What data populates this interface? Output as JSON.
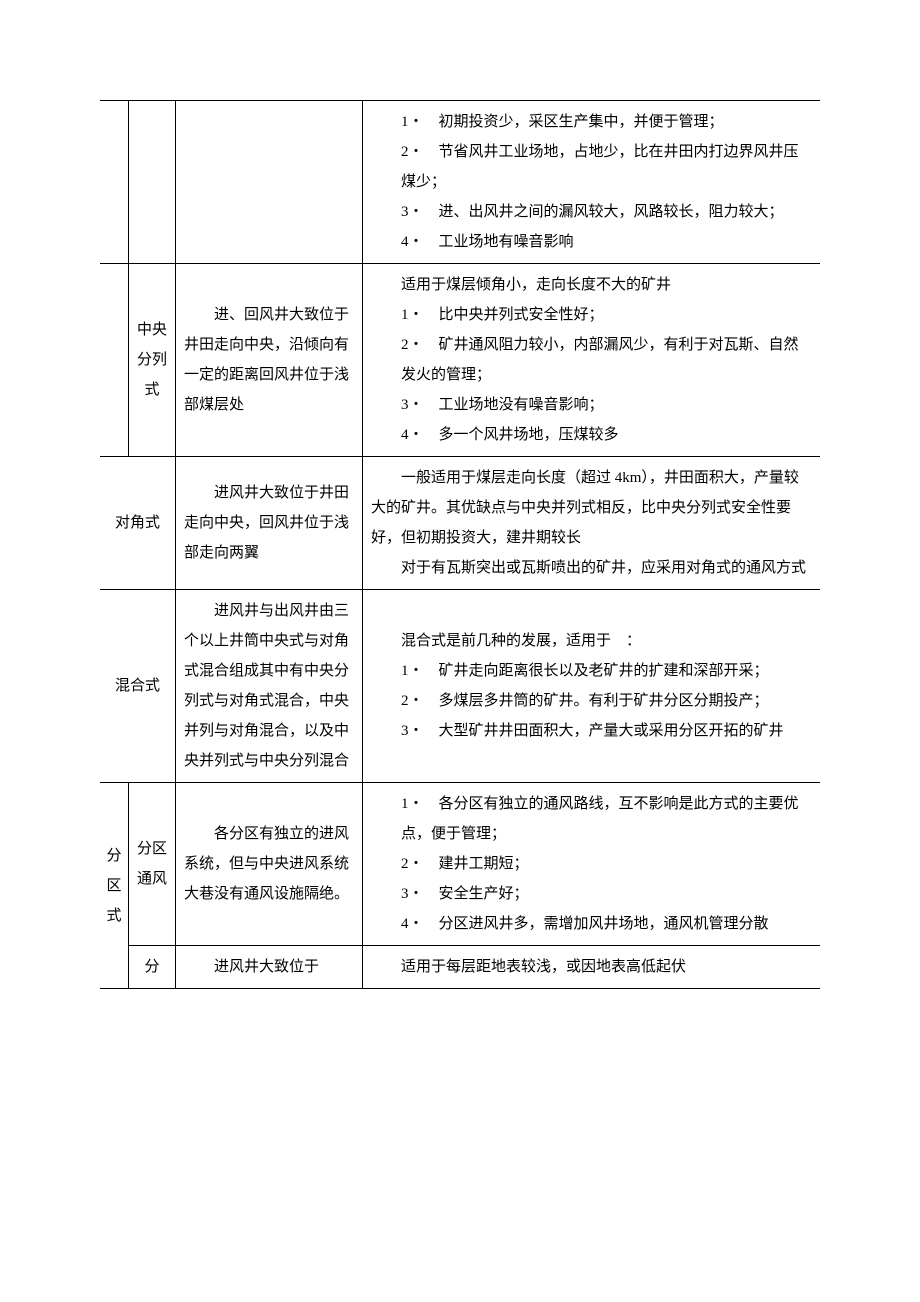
{
  "row1_feat_l1": "1・　初期投资少，采区生产集中，并便于管理；",
  "row1_feat_l2": "2・　节省风井工业场地，占地少，比在井田内打边界风井压煤少；",
  "row1_feat_l3": "3・　进、出风井之间的漏风较大，风路较长，阻力较大；",
  "row1_feat_l4": "4・　工业场地有噪音影响",
  "row2_name": "中央分列式",
  "row2_desc": "进、回风井大致位于井田走向中央，沿倾向有一定的距离回风井位于浅部煤层处",
  "row2_feat_head": "适用于煤层倾角小，走向长度不大的矿井",
  "row2_feat_l1": "1・　比中央并列式安全性好；",
  "row2_feat_l2": "2・　矿井通风阻力较小，内部漏风少，有利于对瓦斯、自然发火的管理；",
  "row2_feat_l3": "3・　工业场地没有噪音影响；",
  "row2_feat_l4": "4・　多一个风井场地，压煤较多",
  "row3_name": "对角式",
  "row3_desc": "进风井大致位于井田走向中央，回风井位于浅部走向两翼",
  "row3_feat_p1": "一般适用于煤层走向长度（超过 4km），井田面积大，产量较大的矿井。其优缺点与中央并列式相反，比中央分列式安全性要好，但初期投资大，建井期较长",
  "row3_feat_p2": "对于有瓦斯突出或瓦斯喷出的矿井，应采用对角式的通风方式",
  "row4_name": "混合式",
  "row4_desc": "进风井与出风井由三个以上井筒中央式与对角式混合组成其中有中央分列式与对角式混合，中央并列与对角混合，以及中央并列式与中央分列混合",
  "row4_feat_head": "混合式是前几种的发展，适用于　：",
  "row4_feat_l1": "1・　矿井走向距离很长以及老矿井的扩建和深部开采；",
  "row4_feat_l2": "2・　多煤层多井筒的矿井。有利于矿井分区分期投产；",
  "row4_feat_l3": "3・　大型矿井井田面积大，产量大或采用分区开拓的矿井",
  "row5_name_outer": "分区式",
  "row5_name_inner": "分区 通风",
  "row5_desc": "各分区有独立的进风系统，但与中央进风系统大巷没有通风设施隔绝。",
  "row5_feat_l1": "1・　各分区有独立的通风路线，互不影响是此方式的主要优点，便于管理；",
  "row5_feat_l2": "2・　建井工期短；",
  "row5_feat_l3": "3・　安全生产好；",
  "row5_feat_l4": "4・　分区进风井多，需增加风井场地，通风机管理分散",
  "row6_name_inner": "分",
  "row6_desc": "进风井大致位于",
  "row6_feat": "适用于每层距地表较浅，或因地表高低起伏"
}
